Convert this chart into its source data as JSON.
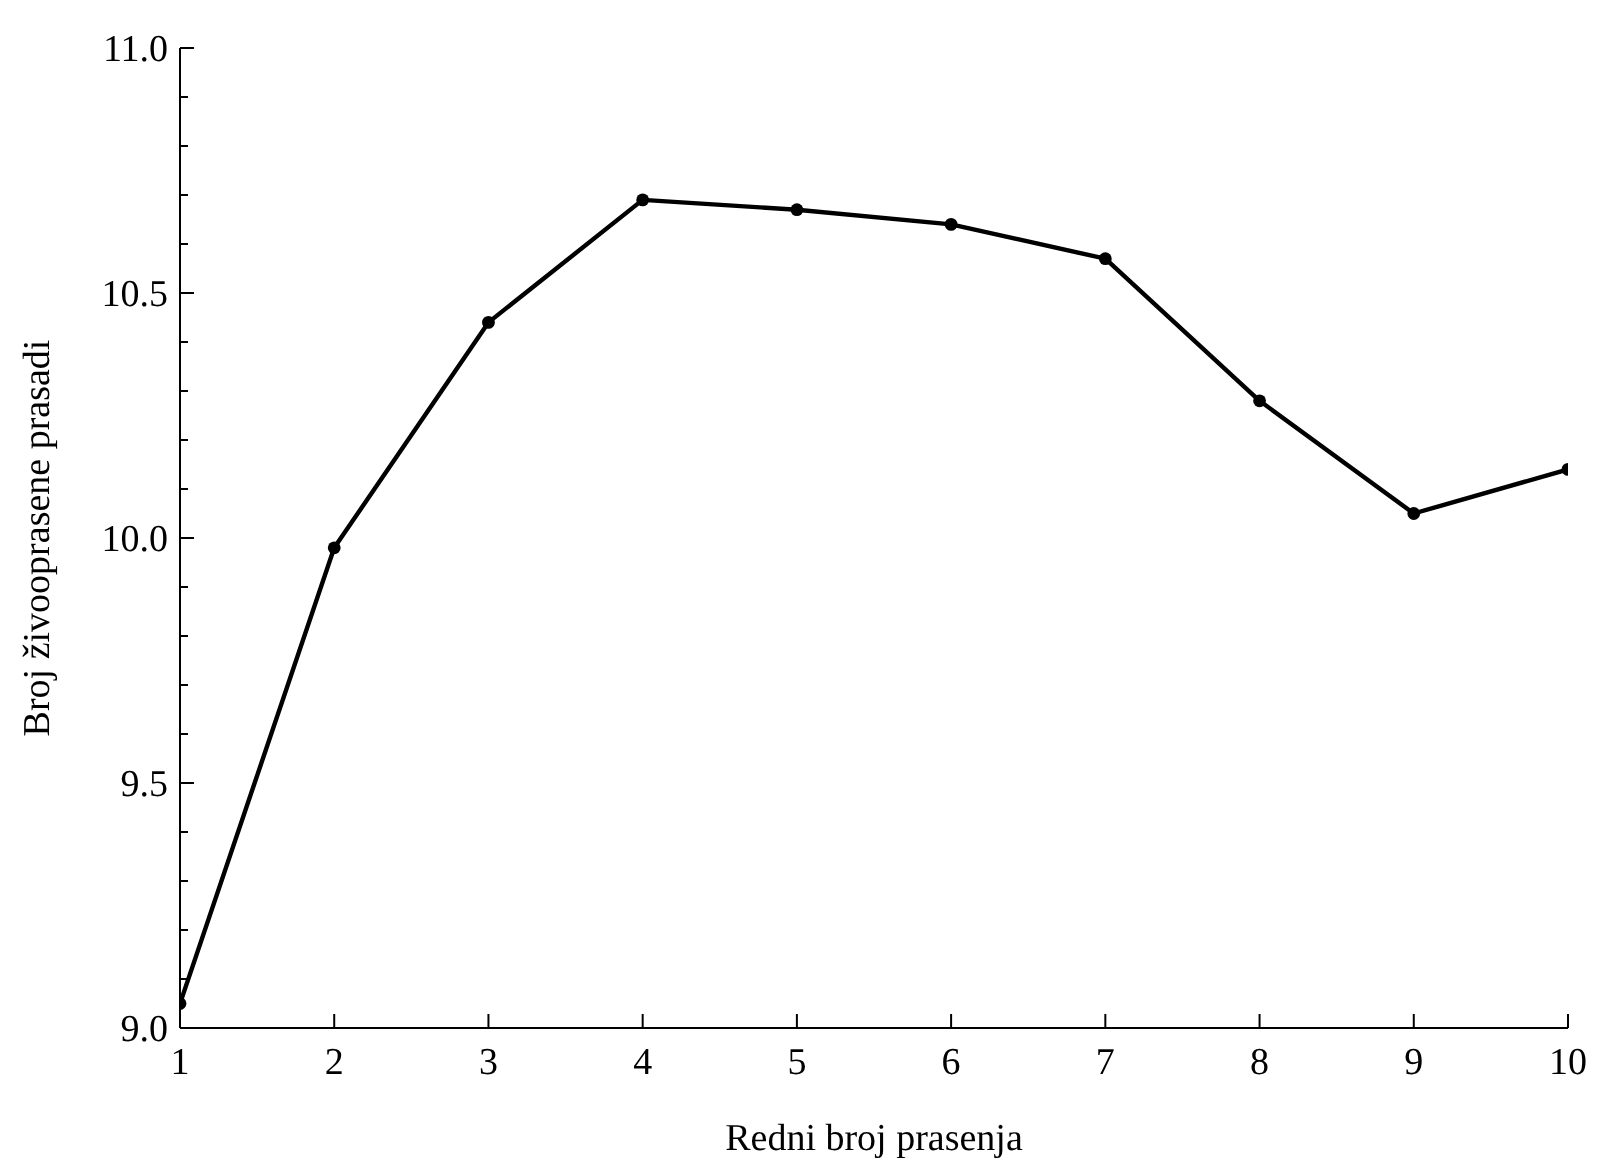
{
  "chart_data": {
    "type": "line",
    "xlabel": "Redni broj prasenja",
    "ylabel": "Broj živooprasene prasadi",
    "x": [
      1,
      2,
      3,
      4,
      5,
      6,
      7,
      8,
      9,
      10
    ],
    "series": [
      {
        "color": "#000000",
        "values": [
          9.05,
          9.98,
          10.44,
          10.69,
          10.67,
          10.64,
          10.57,
          10.28,
          10.05,
          10.14
        ]
      }
    ],
    "xlim": [
      1,
      10
    ],
    "xticks": [
      1,
      2,
      3,
      4,
      5,
      6,
      7,
      8,
      9,
      10
    ],
    "ylim": [
      9.0,
      11.0
    ],
    "yticks": [
      {
        "value": 9.0,
        "label": "9.0"
      },
      {
        "value": 9.1,
        "label": null
      },
      {
        "value": 9.2,
        "label": null
      },
      {
        "value": 9.3,
        "label": null
      },
      {
        "value": 9.4,
        "label": null
      },
      {
        "value": 9.5,
        "label": "9.5"
      },
      {
        "value": 9.6,
        "label": null
      },
      {
        "value": 9.7,
        "label": null
      },
      {
        "value": 9.8,
        "label": null
      },
      {
        "value": 9.9,
        "label": null
      },
      {
        "value": 10.0,
        "label": "10.0"
      },
      {
        "value": 10.1,
        "label": null
      },
      {
        "value": 10.2,
        "label": null
      },
      {
        "value": 10.3,
        "label": null
      },
      {
        "value": 10.4,
        "label": null
      },
      {
        "value": 10.5,
        "label": "10.5"
      },
      {
        "value": 10.6,
        "label": null
      },
      {
        "value": 10.7,
        "label": null
      },
      {
        "value": 10.8,
        "label": null
      },
      {
        "value": 10.9,
        "label": null
      },
      {
        "value": 11.0,
        "label": "11.0"
      }
    ],
    "grid": false,
    "legend": false,
    "marker": "circle",
    "line_style": "solid"
  }
}
